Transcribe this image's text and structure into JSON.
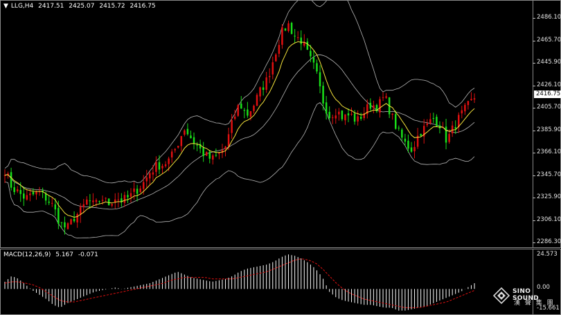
{
  "main": {
    "symbol": "LLG,H4",
    "open": "2417.51",
    "high": "2425.07",
    "low": "2415.72",
    "close": "2416.75",
    "price_axis": [
      "2486.10",
      "2465.70",
      "2445.90",
      "2426.10",
      "2405.70",
      "2385.90",
      "2366.10",
      "2345.70",
      "2325.90",
      "2306.10",
      "2286.30"
    ],
    "current_price": "2416.75"
  },
  "macd": {
    "label": "MACD(12,26,9)",
    "value1": "5.167",
    "value2": "-0.071",
    "axis": [
      "24.573",
      "0.00",
      "-15.661"
    ]
  },
  "logo": {
    "name": "SINO SOUND",
    "subtitle": "漢 聲 集 團"
  },
  "colors": {
    "bull": "#e01010",
    "bear": "#19e019",
    "ma": "#f5e33a",
    "band": "#b8b8b8",
    "macd_hist": "#ffffff",
    "signal": "#e01010"
  },
  "chart_data": [
    {
      "type": "candlestick",
      "title": "LLG,H4",
      "close_path": [
        2352,
        2337,
        2332,
        2327,
        2330,
        2332,
        2327,
        2320,
        2305,
        2300,
        2310,
        2316,
        2326,
        2320,
        2328,
        2322,
        2328,
        2325,
        2328,
        2334,
        2340,
        2350,
        2356,
        2357,
        2362,
        2375,
        2389,
        2380,
        2372,
        2365,
        2361,
        2366,
        2373,
        2395,
        2411,
        2400,
        2409,
        2422,
        2432,
        2452,
        2472,
        2481,
        2470,
        2466,
        2452,
        2440,
        2414,
        2400,
        2405,
        2398,
        2401,
        2395,
        2403,
        2410,
        2408,
        2417,
        2400,
        2385,
        2375,
        2370,
        2385,
        2390,
        2398,
        2392,
        2378,
        2390,
        2400,
        2408,
        2416
      ],
      "ylim": [
        2286.3,
        2496
      ]
    },
    {
      "type": "bar",
      "title": "MACD(12,26,9)",
      "histogram": [
        5,
        9,
        7,
        3,
        -1,
        -4,
        -7,
        -11,
        -13,
        -10,
        -8,
        -6,
        -4,
        -2,
        -1,
        0,
        1,
        0,
        1,
        2,
        3,
        4,
        6,
        8,
        10,
        12,
        10,
        8,
        7,
        6,
        5,
        6,
        7,
        9,
        12,
        14,
        15,
        16,
        17,
        19,
        22,
        24,
        23,
        21,
        18,
        14,
        8,
        -2,
        -6,
        -8,
        -9,
        -10,
        -11,
        -11,
        -12,
        -13,
        -13,
        -15,
        -15,
        -14,
        -13,
        -12,
        -10,
        -8,
        -6,
        -4,
        -2,
        1,
        4
      ],
      "signal": [
        4,
        5,
        5,
        4,
        3,
        1,
        -2,
        -5,
        -8,
        -9,
        -9,
        -8,
        -7,
        -6,
        -5,
        -4,
        -3,
        -2,
        -1,
        0,
        1,
        2,
        3,
        4,
        6,
        7,
        8,
        8,
        8,
        8,
        7,
        7,
        7,
        7,
        8,
        9,
        10,
        11,
        12,
        14,
        16,
        18,
        20,
        21,
        20,
        18,
        14,
        9,
        4,
        0,
        -3,
        -5,
        -7,
        -8,
        -9,
        -10,
        -11,
        -12,
        -13,
        -13,
        -13,
        -12,
        -11,
        -10,
        -9,
        -7,
        -5,
        -3,
        -1
      ],
      "ylim": [
        -15.661,
        24.573
      ]
    }
  ]
}
